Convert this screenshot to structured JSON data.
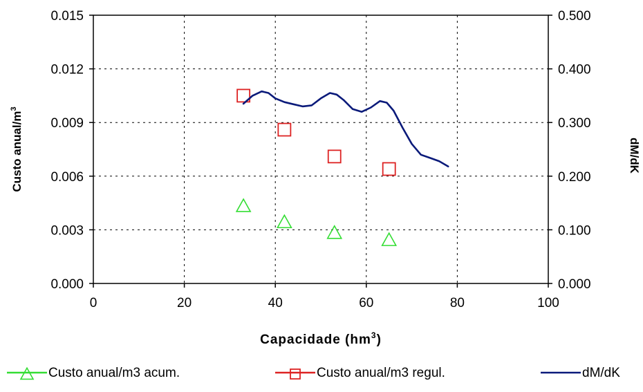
{
  "chart_data": {
    "type": "scatter",
    "xlabel": "Capacidade (hm",
    "xlabel_sup": "3",
    "xlabel_end": ")",
    "ylabel": "Custo anual/m",
    "ylabel_sup": "3",
    "y2label": "dM/dK",
    "xlim": [
      0,
      100
    ],
    "ylim": [
      0,
      0.015
    ],
    "y2lim": [
      0,
      0.5
    ],
    "x_ticks": [
      "0",
      "20",
      "40",
      "60",
      "80",
      "100"
    ],
    "y_ticks": [
      "0.000",
      "0.003",
      "0.006",
      "0.009",
      "0.012",
      "0.015"
    ],
    "y2_ticks": [
      "0.000",
      "0.100",
      "0.200",
      "0.300",
      "0.400",
      "0.500"
    ],
    "grid": true,
    "legend_position": "bottom",
    "series": [
      {
        "name": "Custo anual/m3 acum.",
        "axis": "left",
        "marker": "triangle",
        "color": "#33dd33",
        "points": [
          [
            33,
            0.0043
          ],
          [
            42,
            0.0034
          ],
          [
            53,
            0.0028
          ],
          [
            65,
            0.0024
          ]
        ]
      },
      {
        "name": "Custo anual/m3 regul.",
        "axis": "left",
        "marker": "square",
        "color": "#dd2222",
        "points": [
          [
            33,
            0.0105
          ],
          [
            42,
            0.0086
          ],
          [
            53,
            0.0071
          ],
          [
            65,
            0.0064
          ]
        ]
      },
      {
        "name": "dM/dK",
        "axis": "right",
        "marker": "line",
        "color": "#0a1a7a",
        "points": [
          [
            33,
            0.335
          ],
          [
            35,
            0.35
          ],
          [
            37,
            0.358
          ],
          [
            38.5,
            0.355
          ],
          [
            40,
            0.345
          ],
          [
            42,
            0.338
          ],
          [
            44,
            0.334
          ],
          [
            46,
            0.33
          ],
          [
            48,
            0.332
          ],
          [
            50,
            0.345
          ],
          [
            52,
            0.355
          ],
          [
            53.5,
            0.352
          ],
          [
            55,
            0.342
          ],
          [
            57,
            0.325
          ],
          [
            59,
            0.32
          ],
          [
            61,
            0.328
          ],
          [
            63,
            0.34
          ],
          [
            64.5,
            0.337
          ],
          [
            66,
            0.322
          ],
          [
            68,
            0.29
          ],
          [
            70,
            0.26
          ],
          [
            72,
            0.24
          ],
          [
            74,
            0.234
          ],
          [
            76,
            0.228
          ],
          [
            78,
            0.218
          ]
        ]
      }
    ]
  }
}
